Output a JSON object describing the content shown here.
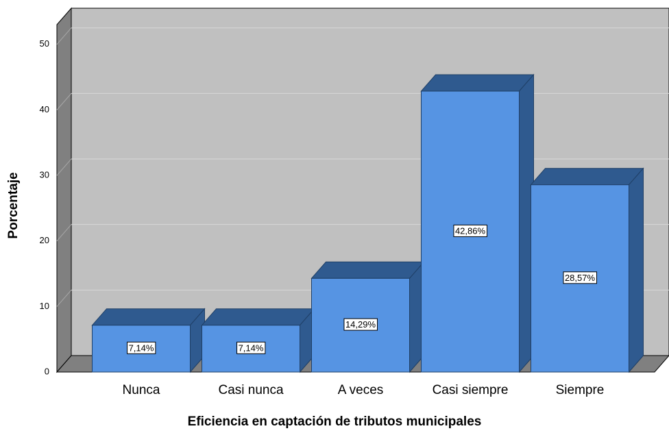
{
  "chart_data": {
    "type": "bar3d",
    "xlabel": "Eficiencia en captación de tributos municipales",
    "ylabel": "Porcentaje",
    "categories": [
      "Nunca",
      "Casi nunca",
      "A veces",
      "Casi siempre",
      "Siempre"
    ],
    "values": [
      7.14,
      7.14,
      14.29,
      42.86,
      28.57
    ],
    "value_labels": [
      "7,14%",
      "7,14%",
      "14,29%",
      "42,86%",
      "28,57%"
    ],
    "color": "#5694e3",
    "ylim": [
      0,
      53
    ],
    "yticks": [
      0,
      10,
      20,
      30,
      40,
      50
    ],
    "grid": true
  }
}
